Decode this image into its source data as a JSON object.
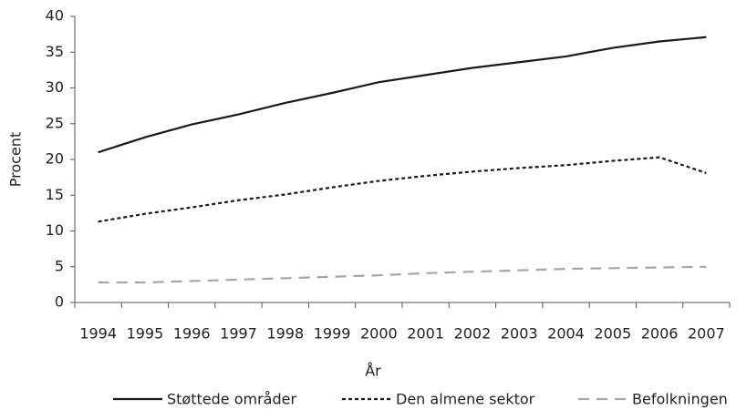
{
  "chart_data": {
    "type": "line",
    "categories": [
      "1994",
      "1995",
      "1996",
      "1997",
      "1998",
      "1999",
      "2000",
      "2001",
      "2002",
      "2003",
      "2004",
      "2005",
      "2006",
      "2007"
    ],
    "series": [
      {
        "name": "Støttede områder",
        "color": "#1a1a1a",
        "linestyle": "solid",
        "values": [
          21.0,
          23.1,
          24.9,
          26.3,
          27.9,
          29.3,
          30.8,
          31.8,
          32.8,
          33.6,
          34.4,
          35.6,
          36.5,
          37.1
        ]
      },
      {
        "name": "Den almene sektor",
        "color": "#1a1a1a",
        "linestyle": "dotted",
        "values": [
          11.3,
          12.4,
          13.3,
          14.3,
          15.1,
          16.1,
          17.0,
          17.7,
          18.3,
          18.8,
          19.2,
          19.8,
          20.3,
          18.1
        ]
      },
      {
        "name": "Befolkningen",
        "color": "#a6a6a6",
        "linestyle": "dashed",
        "values": [
          2.8,
          2.8,
          3.0,
          3.2,
          3.4,
          3.6,
          3.8,
          4.1,
          4.3,
          4.5,
          4.7,
          4.8,
          4.9,
          5.0
        ]
      }
    ],
    "xlabel": "År",
    "ylabel": "Procent",
    "ylim": [
      0,
      40
    ],
    "yticks": [
      0,
      5,
      10,
      15,
      20,
      25,
      30,
      35,
      40
    ],
    "grid": false,
    "legend": "bottom"
  }
}
